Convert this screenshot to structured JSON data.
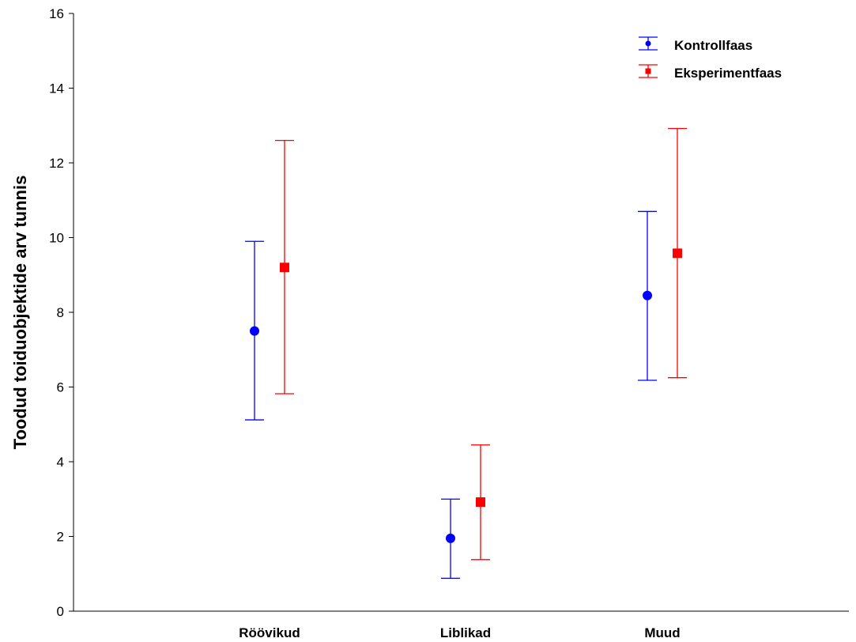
{
  "chart_data": {
    "type": "scatter",
    "title": "",
    "xlabel": "",
    "ylabel": "Toodud toiduobjektide arv tunnis",
    "categories": [
      "Röövikud",
      "Liblikad",
      "Muud"
    ],
    "ylim": [
      0,
      16
    ],
    "yticks": [
      "0",
      "2",
      "4",
      "6",
      "8",
      "10",
      "12",
      "14",
      "16"
    ],
    "grid": false,
    "legend_position": "top-right",
    "series": [
      {
        "name": "Kontrollfaas",
        "color": "#0000ff",
        "marker": "circle",
        "values": [
          7.5,
          1.95,
          8.45
        ],
        "lower": [
          5.12,
          0.88,
          6.18
        ],
        "upper": [
          9.9,
          3.0,
          10.7
        ]
      },
      {
        "name": "Eksperimentfaas",
        "color": "#ff0000",
        "marker": "square",
        "values": [
          9.2,
          2.92,
          9.58
        ],
        "lower": [
          5.82,
          1.38,
          6.25
        ],
        "upper": [
          12.6,
          4.45,
          12.92
        ]
      }
    ]
  }
}
